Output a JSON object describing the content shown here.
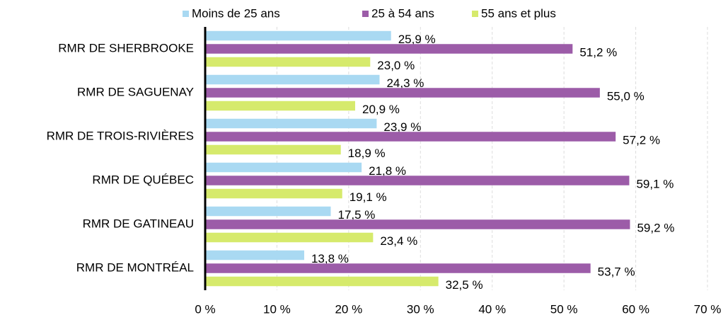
{
  "chart_data": {
    "type": "hbar",
    "categories": [
      "RMR DE SHERBROOKE",
      "RMR DE SAGUENAY",
      "RMR DE TROIS-RIVIÈRES",
      "RMR DE QUÉBEC",
      "RMR DE GATINEAU",
      "RMR DE MONTRÉAL"
    ],
    "series": [
      {
        "name": "Moins de 25 ans",
        "color": "#a9d9f2",
        "values": [
          25.9,
          24.3,
          23.9,
          21.8,
          17.5,
          13.8
        ],
        "value_labels": [
          "25,9 %",
          "24,3 %",
          "23,9 %",
          "21,8 %",
          "17,5 %",
          "13,8 %"
        ]
      },
      {
        "name": "25 à 54 ans",
        "color": "#9c5ca8",
        "values": [
          51.2,
          55.0,
          57.2,
          59.1,
          59.2,
          53.7
        ],
        "value_labels": [
          "51,2 %",
          "55,0 %",
          "57,2 %",
          "59,1 %",
          "59,2 %",
          "53,7 %"
        ]
      },
      {
        "name": "55 ans et plus",
        "color": "#d6ea6c",
        "values": [
          23.0,
          20.9,
          18.9,
          19.1,
          23.4,
          32.5
        ],
        "value_labels": [
          "23,0 %",
          "20,9 %",
          "18,9 %",
          "19,1 %",
          "23,4 %",
          "32,5 %"
        ]
      }
    ],
    "xlim": [
      0,
      70
    ],
    "xticks": [
      {
        "value": 0,
        "label": "0 %"
      },
      {
        "value": 10,
        "label": "10 %"
      },
      {
        "value": 20,
        "label": "20 %"
      },
      {
        "value": 30,
        "label": "30 %"
      },
      {
        "value": 40,
        "label": "40 %"
      },
      {
        "value": 50,
        "label": "50 %"
      },
      {
        "value": 60,
        "label": "60 %"
      },
      {
        "value": 70,
        "label": "70 %"
      }
    ],
    "grid": true,
    "legend": "top"
  }
}
